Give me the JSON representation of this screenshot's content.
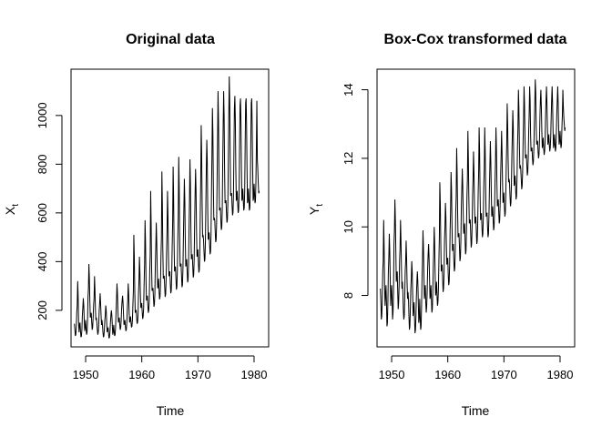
{
  "chart_data": [
    {
      "type": "line",
      "title": "Original data",
      "xlabel": "Time",
      "ylabel": "X",
      "ylabel_sub": "t",
      "xlim": [
        1947.4,
        1982.6
      ],
      "ylim": [
        50,
        1190
      ],
      "xticks": [
        1950,
        1960,
        1970,
        1980
      ],
      "yticks": [
        200,
        400,
        600,
        800,
        1000
      ],
      "grid": false,
      "series": [
        {
          "x_start": 1948.0,
          "x_step": 0.0833333,
          "values": [
            145,
            120,
            95,
            100,
            130,
            190,
            220,
            320,
            260,
            150,
            110,
            140,
            150,
            115,
            90,
            95,
            120,
            180,
            210,
            250,
            220,
            160,
            115,
            130,
            160,
            125,
            100,
            110,
            150,
            250,
            290,
            390,
            330,
            240,
            170,
            180,
            190,
            150,
            120,
            130,
            170,
            220,
            250,
            340,
            280,
            200,
            160,
            170,
            150,
            120,
            100,
            110,
            140,
            200,
            230,
            270,
            230,
            180,
            140,
            160,
            140,
            110,
            90,
            95,
            120,
            160,
            180,
            220,
            200,
            150,
            110,
            120,
            130,
            105,
            85,
            90,
            110,
            150,
            180,
            200,
            180,
            140,
            100,
            110,
            140,
            115,
            95,
            100,
            130,
            190,
            240,
            310,
            270,
            200,
            150,
            160,
            170,
            140,
            120,
            130,
            160,
            210,
            240,
            260,
            230,
            180,
            140,
            150,
            160,
            135,
            115,
            120,
            150,
            200,
            240,
            310,
            270,
            190,
            150,
            160,
            175,
            150,
            130,
            135,
            160,
            220,
            280,
            510,
            420,
            280,
            190,
            200,
            200,
            170,
            145,
            150,
            180,
            270,
            320,
            420,
            360,
            270,
            210,
            220,
            230,
            190,
            165,
            175,
            210,
            310,
            390,
            570,
            480,
            330,
            240,
            250,
            260,
            220,
            190,
            200,
            240,
            360,
            430,
            690,
            560,
            380,
            280,
            290,
            290,
            250,
            215,
            225,
            270,
            390,
            460,
            560,
            480,
            370,
            290,
            300,
            330,
            280,
            245,
            255,
            300,
            420,
            500,
            770,
            640,
            450,
            330,
            340,
            340,
            295,
            255,
            265,
            320,
            440,
            530,
            690,
            590,
            430,
            340,
            350,
            360,
            310,
            270,
            280,
            340,
            460,
            560,
            790,
            670,
            480,
            360,
            370,
            380,
            330,
            285,
            295,
            360,
            490,
            590,
            830,
            710,
            500,
            380,
            390,
            390,
            340,
            295,
            305,
            370,
            500,
            620,
            740,
            650,
            490,
            380,
            390,
            410,
            360,
            315,
            325,
            390,
            530,
            650,
            820,
            720,
            530,
            410,
            420,
            430,
            380,
            335,
            345,
            410,
            560,
            680,
            780,
            690,
            530,
            420,
            430,
            450,
            400,
            355,
            365,
            430,
            600,
            730,
            960,
            850,
            640,
            500,
            510,
            490,
            440,
            400,
            410,
            480,
            640,
            790,
            900,
            810,
            610,
            490,
            500,
            520,
            470,
            430,
            440,
            510,
            680,
            840,
            1030,
            930,
            720,
            570,
            580,
            570,
            520,
            480,
            490,
            560,
            730,
            900,
            1100,
            980,
            760,
            610,
            620,
            620,
            570,
            530,
            540,
            610,
            800,
            960,
            1100,
            1000,
            780,
            640,
            650,
            650,
            600,
            560,
            570,
            640,
            820,
            1000,
            1160,
            1050,
            830,
            670,
            680,
            680,
            630,
            590,
            600,
            670,
            860,
            1030,
            1080,
            980,
            780,
            650,
            660,
            690,
            640,
            600,
            610,
            680,
            870,
            1040,
            1070,
            970,
            780,
            650,
            660,
            700,
            650,
            610,
            620,
            690,
            880,
            1050,
            1070,
            960,
            770,
            640,
            650,
            700,
            650,
            610,
            620,
            700,
            880,
            1050,
            1070,
            960,
            780,
            650,
            660,
            720,
            680,
            640,
            650,
            730,
            880,
            1060,
            820,
            780,
            720,
            680,
            690
          ]
        }
      ]
    },
    {
      "type": "line",
      "title": "Box-Cox transformed data",
      "xlabel": "Time",
      "ylabel": "Y",
      "ylabel_sub": "t",
      "xlim": [
        1947.4,
        1982.6
      ],
      "ylim": [
        6.5,
        14.6
      ],
      "xticks": [
        1950,
        1960,
        1970,
        1980
      ],
      "yticks": [
        8,
        10,
        12,
        14
      ],
      "grid": false,
      "series": [
        {
          "x_start": 1948.0,
          "x_step": 0.0833333,
          "values": [
            8.2,
            7.8,
            7.3,
            7.4,
            7.9,
            8.7,
            9.0,
            10.2,
            9.4,
            8.3,
            7.7,
            8.0,
            8.3,
            7.8,
            7.1,
            7.2,
            7.8,
            8.7,
            9.1,
            9.8,
            9.3,
            8.5,
            7.7,
            8.0,
            8.3,
            7.9,
            7.3,
            7.5,
            8.1,
            9.5,
            9.9,
            10.8,
            10.2,
            9.3,
            8.4,
            8.6,
            8.7,
            8.1,
            7.6,
            7.8,
            8.3,
            9.0,
            9.4,
            10.2,
            9.6,
            8.8,
            8.2,
            8.4,
            8.1,
            7.6,
            7.3,
            7.4,
            7.9,
            8.7,
            9.0,
            9.6,
            9.1,
            8.4,
            7.9,
            8.1,
            7.9,
            7.4,
            7.0,
            7.1,
            7.6,
            8.2,
            8.5,
            9.0,
            8.7,
            8.0,
            7.4,
            7.6,
            7.8,
            7.3,
            6.9,
            7.0,
            7.4,
            8.0,
            8.4,
            8.7,
            8.4,
            7.8,
            7.2,
            7.3,
            7.9,
            7.4,
            7.0,
            7.1,
            7.7,
            8.5,
            9.0,
            9.9,
            9.4,
            8.6,
            7.9,
            8.1,
            8.3,
            7.8,
            7.5,
            7.7,
            8.1,
            8.8,
            9.2,
            9.5,
            9.1,
            8.5,
            7.9,
            8.0,
            8.3,
            7.9,
            7.5,
            7.6,
            8.1,
            8.8,
            9.3,
            10.0,
            9.5,
            8.6,
            8.0,
            8.1,
            8.4,
            8.0,
            7.7,
            7.8,
            8.2,
            9.0,
            9.7,
            11.3,
            10.7,
            9.6,
            8.7,
            8.8,
            8.9,
            8.5,
            8.1,
            8.2,
            8.6,
            9.6,
            10.0,
            10.7,
            10.3,
            9.5,
            8.9,
            9.0,
            9.1,
            8.6,
            8.3,
            8.4,
            8.9,
            9.9,
            10.5,
            11.6,
            11.1,
            10.1,
            9.3,
            9.4,
            9.5,
            9.0,
            8.7,
            8.8,
            9.3,
            10.4,
            10.9,
            12.3,
            11.6,
            10.5,
            9.7,
            9.8,
            9.8,
            9.4,
            9.0,
            9.1,
            9.6,
            10.6,
            11.1,
            11.7,
            11.2,
            10.4,
            9.8,
            9.9,
            10.1,
            9.6,
            9.2,
            9.3,
            9.9,
            10.9,
            11.4,
            12.8,
            12.0,
            10.9,
            10.1,
            10.2,
            10.2,
            9.8,
            9.4,
            9.5,
            10.0,
            10.9,
            11.4,
            12.2,
            11.6,
            10.7,
            10.1,
            10.2,
            10.3,
            9.9,
            9.5,
            9.6,
            10.1,
            11.0,
            11.6,
            12.9,
            12.2,
            11.0,
            10.2,
            10.3,
            10.4,
            10.0,
            9.7,
            9.8,
            10.3,
            11.2,
            11.7,
            12.9,
            12.2,
            11.1,
            10.3,
            10.4,
            10.4,
            10.0,
            9.7,
            9.8,
            10.3,
            11.1,
            11.8,
            12.5,
            11.9,
            11.0,
            10.3,
            10.4,
            10.6,
            10.2,
            9.9,
            10.0,
            10.5,
            11.3,
            11.9,
            12.9,
            12.3,
            11.3,
            10.6,
            10.7,
            10.8,
            10.4,
            10.1,
            10.2,
            10.7,
            11.5,
            12.1,
            12.8,
            12.2,
            11.3,
            10.7,
            10.8,
            11.0,
            10.6,
            10.3,
            10.4,
            10.9,
            11.8,
            12.4,
            13.6,
            13.0,
            12.0,
            11.3,
            11.4,
            11.3,
            10.9,
            10.6,
            10.7,
            11.2,
            12.1,
            12.7,
            13.4,
            12.9,
            11.9,
            11.2,
            11.3,
            11.5,
            11.1,
            10.8,
            10.9,
            11.4,
            12.3,
            12.9,
            14.0,
            13.5,
            12.5,
            11.7,
            11.8,
            11.7,
            11.4,
            11.1,
            11.2,
            11.6,
            12.5,
            13.1,
            14.1,
            13.6,
            12.6,
            12.0,
            12.1,
            12.1,
            11.8,
            11.5,
            11.6,
            12.0,
            12.8,
            13.3,
            14.1,
            13.7,
            12.7,
            12.2,
            12.3,
            12.3,
            12.0,
            11.8,
            11.9,
            12.3,
            13.0,
            13.6,
            14.3,
            13.9,
            12.9,
            12.4,
            12.5,
            12.5,
            12.2,
            12.0,
            12.1,
            12.5,
            13.2,
            13.7,
            14.0,
            13.5,
            12.8,
            12.3,
            12.4,
            12.6,
            12.3,
            12.1,
            12.2,
            12.5,
            13.2,
            13.7,
            14.1,
            13.6,
            12.9,
            12.4,
            12.5,
            12.7,
            12.4,
            12.2,
            12.3,
            12.6,
            13.2,
            13.7,
            14.1,
            13.6,
            12.8,
            12.3,
            12.4,
            12.7,
            12.4,
            12.2,
            12.3,
            12.7,
            13.3,
            13.7,
            14.1,
            13.6,
            12.9,
            12.4,
            12.5,
            12.8,
            12.5,
            12.3,
            12.4,
            12.9,
            13.3,
            14.0,
            13.5,
            13.2,
            13.0,
            12.8,
            12.9
          ]
        }
      ]
    }
  ]
}
